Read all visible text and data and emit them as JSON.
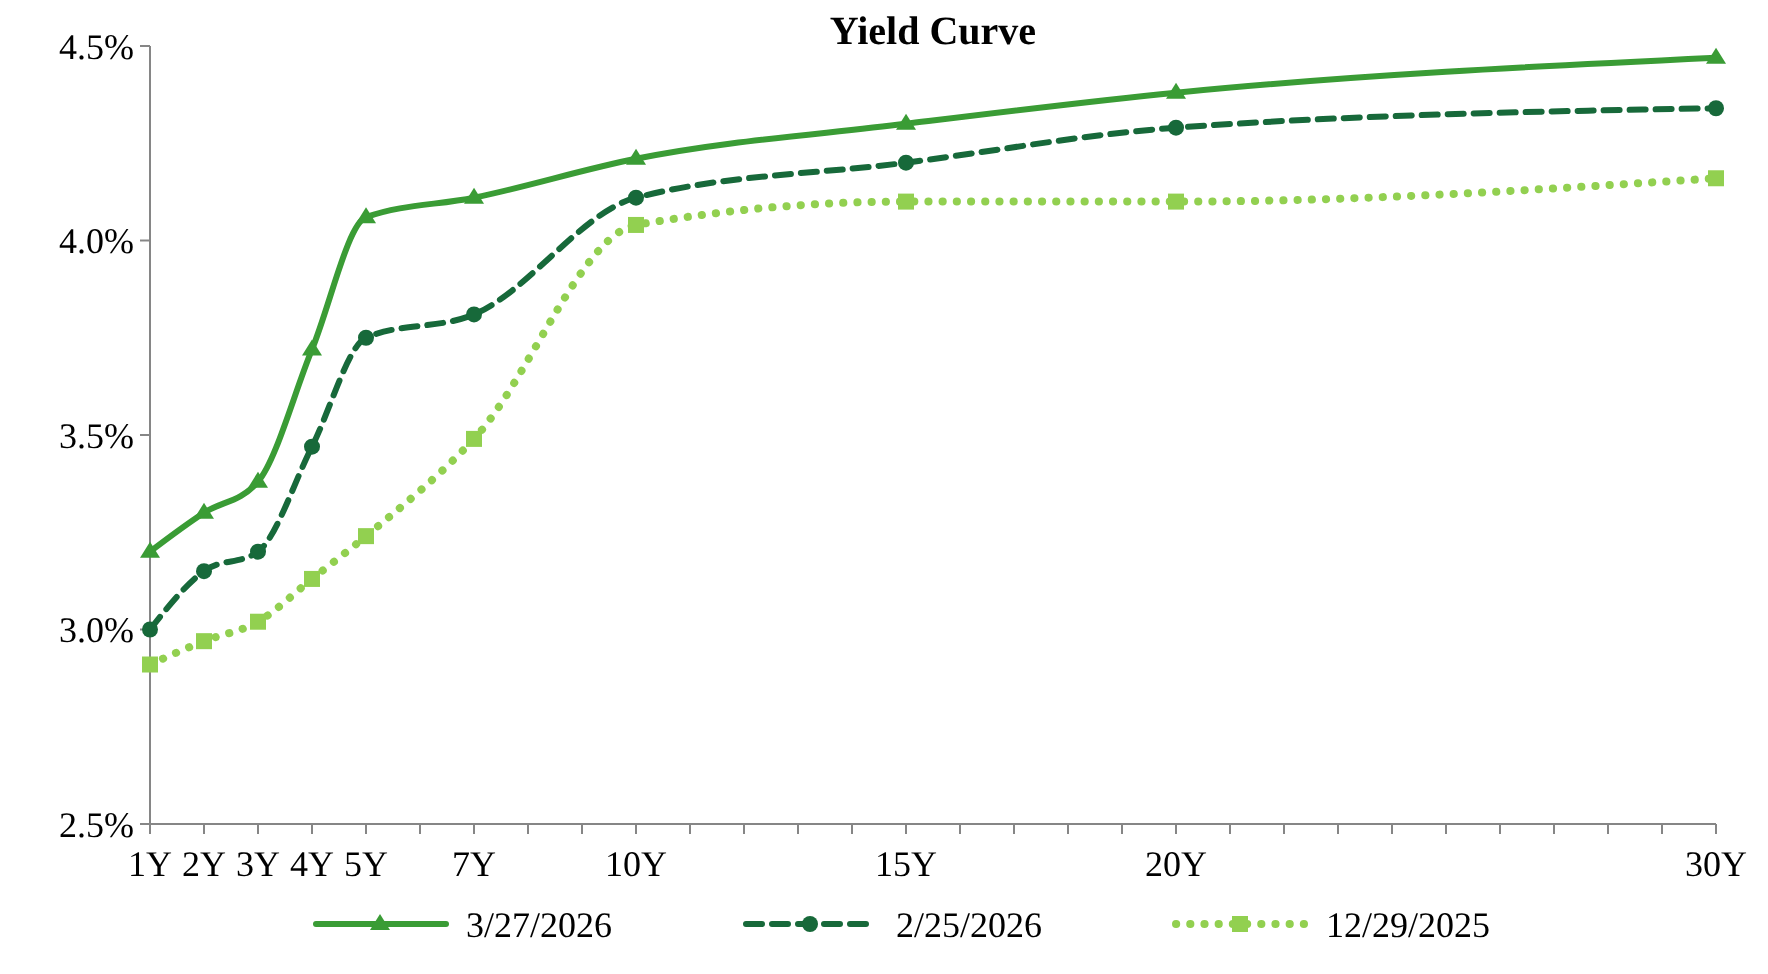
{
  "chart_data": {
    "type": "line",
    "title": "Yield Curve",
    "x": [
      1,
      2,
      3,
      4,
      5,
      7,
      10,
      15,
      20,
      30
    ],
    "xlim": [
      1,
      30
    ],
    "xticks": [
      {
        "value": 1,
        "label": "1Y"
      },
      {
        "value": 2,
        "label": "2Y"
      },
      {
        "value": 3,
        "label": "3Y"
      },
      {
        "value": 4,
        "label": "4Y"
      },
      {
        "value": 5,
        "label": "5Y"
      },
      {
        "value": 6,
        "label": null
      },
      {
        "value": 7,
        "label": "7Y"
      },
      {
        "value": 8,
        "label": null
      },
      {
        "value": 9,
        "label": null
      },
      {
        "value": 10,
        "label": "10Y"
      },
      {
        "value": 11,
        "label": null
      },
      {
        "value": 12,
        "label": null
      },
      {
        "value": 13,
        "label": null
      },
      {
        "value": 14,
        "label": null
      },
      {
        "value": 15,
        "label": "15Y"
      },
      {
        "value": 16,
        "label": null
      },
      {
        "value": 17,
        "label": null
      },
      {
        "value": 18,
        "label": null
      },
      {
        "value": 19,
        "label": null
      },
      {
        "value": 20,
        "label": "20Y"
      },
      {
        "value": 21,
        "label": null
      },
      {
        "value": 22,
        "label": null
      },
      {
        "value": 23,
        "label": null
      },
      {
        "value": 24,
        "label": null
      },
      {
        "value": 25,
        "label": null
      },
      {
        "value": 26,
        "label": null
      },
      {
        "value": 27,
        "label": null
      },
      {
        "value": 28,
        "label": null
      },
      {
        "value": 29,
        "label": null
      },
      {
        "value": 30,
        "label": "30Y"
      }
    ],
    "ylim": [
      2.5,
      4.5
    ],
    "yticks": [
      {
        "value": 2.5,
        "label": "2.5%"
      },
      {
        "value": 3,
        "label": "3.0%"
      },
      {
        "value": 3.5,
        "label": "3.5%"
      },
      {
        "value": 4,
        "label": "4.0%"
      },
      {
        "value": 4.5,
        "label": "4.5%"
      }
    ],
    "grid": false,
    "legend": "bottom",
    "series": [
      {
        "name": "3/27/2026",
        "color": "#3a9c35",
        "marker": "triangle",
        "line_style": "solid",
        "values": [
          3.2,
          3.3,
          3.38,
          3.72,
          4.06,
          4.11,
          4.21,
          4.3,
          4.38,
          4.47
        ]
      },
      {
        "name": "2/25/2026",
        "color": "#17693a",
        "marker": "circle",
        "line_style": "dashed",
        "values": [
          3.0,
          3.15,
          3.2,
          3.47,
          3.75,
          3.81,
          4.11,
          4.2,
          4.29,
          4.34
        ]
      },
      {
        "name": "12/29/2025",
        "color": "#92d050",
        "marker": "square",
        "line_style": "dotted",
        "values": [
          2.91,
          2.97,
          3.02,
          3.13,
          3.24,
          3.49,
          4.04,
          4.1,
          4.1,
          4.16
        ]
      }
    ]
  }
}
